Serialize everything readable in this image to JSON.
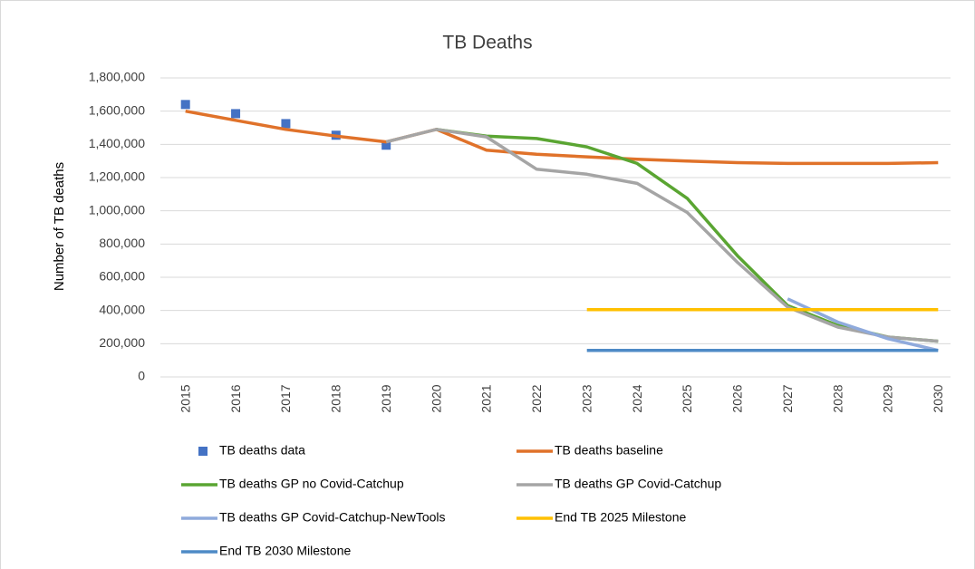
{
  "chart_data": {
    "type": "line",
    "title": "TB Deaths",
    "y_label": "Number of TB deaths",
    "categories": [
      "2015",
      "2016",
      "2017",
      "2018",
      "2019",
      "2020",
      "2021",
      "2022",
      "2023",
      "2024",
      "2025",
      "2026",
      "2027",
      "2028",
      "2029",
      "2030"
    ],
    "ylim": [
      0,
      1800000
    ],
    "yticks": [
      0,
      {
        "value": 200000,
        "label": "200,000"
      },
      {
        "value": 400000,
        "label": "400,000"
      },
      {
        "value": 600000,
        "label": "600,000"
      },
      {
        "value": 800000,
        "label": "800,000"
      },
      {
        "value": 1000000,
        "label": "1,000,000"
      },
      {
        "value": 1200000,
        "label": "1,200,000"
      },
      {
        "value": 1400000,
        "label": "1,400,000"
      },
      {
        "value": 1600000,
        "label": "1,600,000"
      },
      {
        "value": 1800000,
        "label": "1,800,000"
      }
    ],
    "grid": true,
    "legend": "bottom",
    "series": [
      {
        "name": "TB deaths data",
        "color": "#4472c4",
        "mode": "markers",
        "values": [
          1640000,
          1585000,
          1525000,
          1455000,
          1395000,
          null,
          null,
          null,
          null,
          null,
          null,
          null,
          null,
          null,
          null,
          null
        ]
      },
      {
        "name": "TB deaths baseline",
        "color": "#e0722a",
        "mode": "line",
        "values": [
          1600000,
          1545000,
          1490000,
          1450000,
          1415000,
          1490000,
          1365000,
          1340000,
          1325000,
          1310000,
          1300000,
          1290000,
          1285000,
          1285000,
          1285000,
          1290000
        ]
      },
      {
        "name": "TB deaths GP no Covid-Catchup",
        "color": "#5aa532",
        "mode": "line",
        "values": [
          null,
          null,
          null,
          null,
          null,
          1490000,
          1450000,
          1435000,
          1385000,
          1285000,
          1075000,
          730000,
          430000,
          310000,
          240000,
          215000
        ]
      },
      {
        "name": "TB deaths GP Covid-Catchup",
        "color": "#a5a5a5",
        "mode": "line",
        "values": [
          null,
          null,
          null,
          null,
          1415000,
          1490000,
          1445000,
          1250000,
          1220000,
          1165000,
          990000,
          690000,
          420000,
          300000,
          240000,
          215000
        ]
      },
      {
        "name": "TB deaths GP Covid-Catchup-NewTools",
        "color": "#8faadc",
        "mode": "line",
        "values": [
          null,
          null,
          null,
          null,
          null,
          null,
          null,
          null,
          null,
          null,
          null,
          null,
          470000,
          330000,
          230000,
          160000
        ]
      },
      {
        "name": "End TB 2025 Milestone",
        "color": "#ffc000",
        "mode": "line",
        "values": [
          null,
          null,
          null,
          null,
          null,
          null,
          null,
          null,
          405000,
          405000,
          405000,
          405000,
          405000,
          405000,
          405000,
          405000
        ]
      },
      {
        "name": "End TB 2030 Milestone",
        "color": "#4e8ac6",
        "mode": "line",
        "values": [
          null,
          null,
          null,
          null,
          null,
          null,
          null,
          null,
          160000,
          160000,
          160000,
          160000,
          160000,
          160000,
          160000,
          160000
        ]
      }
    ]
  }
}
